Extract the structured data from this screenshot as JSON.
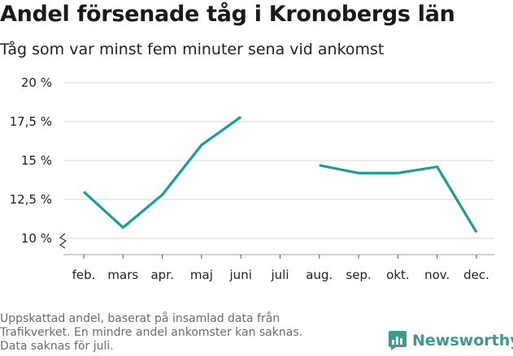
{
  "header": {
    "title": "Andel försenade tåg i Kronobergs län",
    "subtitle": "Tåg som var minst fem minuter sena vid ankomst"
  },
  "footer": {
    "note_lines": [
      "Uppskattad andel, baserat på insamlad data från",
      "Trafikverket. En mindre andel ankomster kan saknas.",
      "Data saknas för juli."
    ],
    "brand": "Newsworthy",
    "brand_icon": "bar-chart-logo-icon"
  },
  "colors": {
    "line": "#16a096",
    "grid": "#d9d9d9",
    "brand": "#3a9b8e"
  },
  "chart_data": {
    "type": "line",
    "title": "Andel försenade tåg i Kronobergs län",
    "subtitle": "Tåg som var minst fem minuter sena vid ankomst",
    "categories": [
      "feb.",
      "mars",
      "apr.",
      "maj",
      "juni",
      "juli",
      "aug.",
      "sep.",
      "okt.",
      "nov.",
      "dec."
    ],
    "series": [
      {
        "values": [
          13.0,
          10.7,
          12.8,
          16.0,
          17.8,
          null,
          14.7,
          14.2,
          14.2,
          14.6,
          10.4
        ]
      }
    ],
    "yticks": [
      10,
      12.5,
      15,
      17.5,
      20
    ],
    "ytick_labels": [
      "10 %",
      "12,5 %",
      "15 %",
      "17,5 %",
      "20 %"
    ],
    "ylim": [
      9.2,
      20
    ],
    "axis_break": true,
    "grid": true,
    "legend": "none"
  }
}
